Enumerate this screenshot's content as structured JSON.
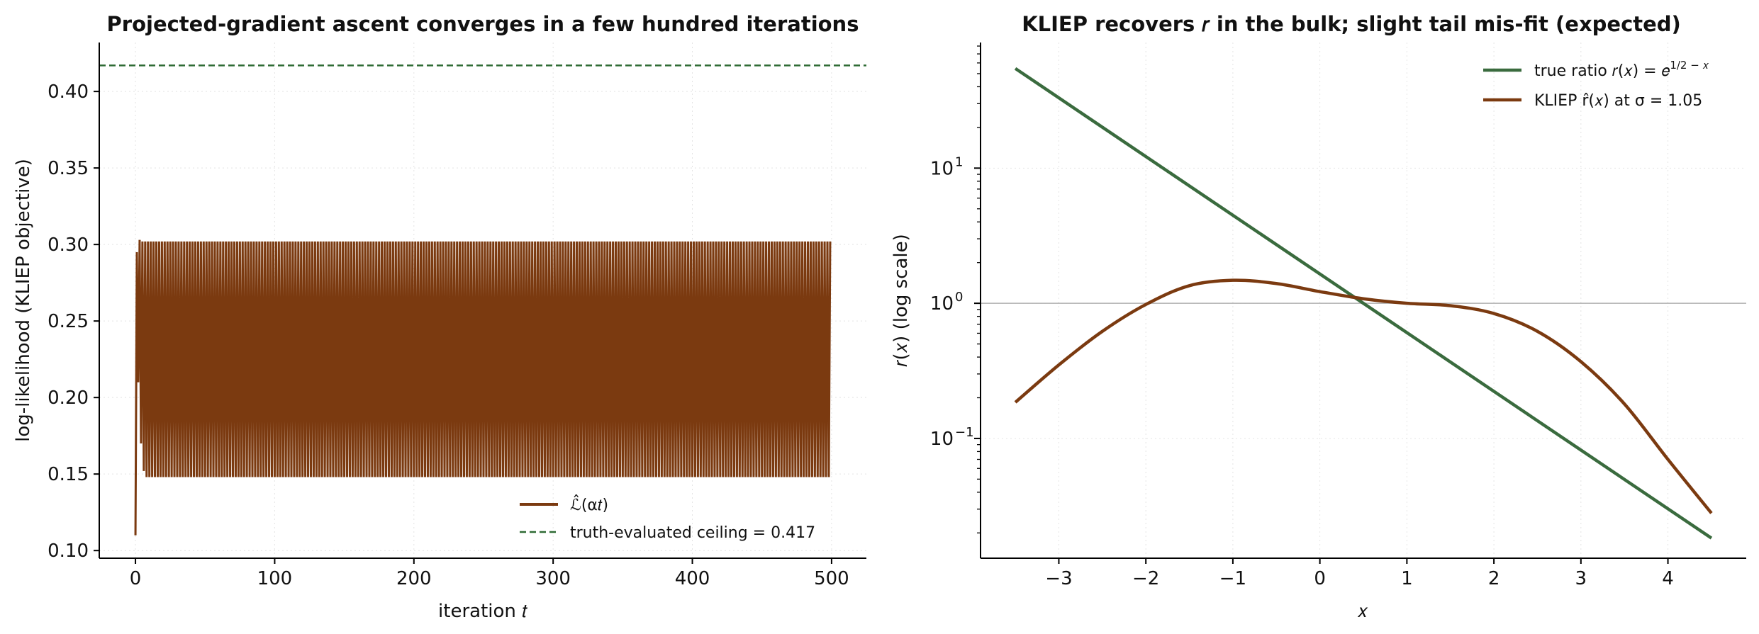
{
  "chart_data": [
    {
      "type": "line",
      "title": "Projected-gradient ascent converges in a few hundred iterations",
      "xlabel": "iteration 𝑡",
      "ylabel": "log-likelihood (KLIEP objective)",
      "xlim": [
        -26,
        525
      ],
      "ylim": [
        0.095,
        0.432
      ],
      "xticks": [
        0,
        100,
        200,
        300,
        400,
        500
      ],
      "xtick_labels": [
        "0",
        "100",
        "200",
        "300",
        "400",
        "500"
      ],
      "yticks": [
        0.1,
        0.15,
        0.2,
        0.25,
        0.3,
        0.35,
        0.4
      ],
      "ytick_labels": [
        "0.10",
        "0.15",
        "0.20",
        "0.25",
        "0.30",
        "0.35",
        "0.40"
      ],
      "grid": true,
      "legend_position": "bottom-right",
      "series": [
        {
          "name": "ℒ̂(α𝑡)",
          "color": "#7b3a10",
          "style": "solid",
          "description_values": {
            "initial": [
              [
                0,
                0.11
              ],
              [
                1,
                0.295
              ],
              [
                2,
                0.21
              ],
              [
                3,
                0.303
              ],
              [
                4,
                0.17
              ],
              [
                5,
                0.302
              ],
              [
                6,
                0.152
              ]
            ],
            "oscillation_range": [
              0.148,
              0.302
            ],
            "oscillation_until": 499
          }
        },
        {
          "name": "truth-evaluated ceiling = 0.417",
          "color": "#2f6b34",
          "style": "dashed",
          "y": 0.417
        }
      ]
    },
    {
      "type": "line",
      "title": "KLIEP recovers 𝑟 in the bulk; slight tail mis-fit (expected)",
      "xlabel": "𝑥",
      "ylabel": "𝑟(𝑥) (log scale)",
      "xlim": [
        -3.9,
        4.9
      ],
      "ylim": [
        0.013,
        85
      ],
      "yscale": "log",
      "xticks": [
        -3,
        -2,
        -1,
        0,
        1,
        2,
        3,
        4
      ],
      "xtick_labels": [
        "−3",
        "−2",
        "−1",
        "0",
        "1",
        "2",
        "3",
        "4"
      ],
      "yticks": [
        0.1,
        1,
        10
      ],
      "ytick_labels": [
        "10",
        "10",
        "10"
      ],
      "ytick_exponents": [
        "−1",
        "0",
        "1"
      ],
      "reference_line": {
        "y": 1,
        "color": "#b0b0b0"
      },
      "grid": true,
      "legend_position": "top-right",
      "series": [
        {
          "name": "true ratio 𝑟(𝑥) = 𝑒^(1/2 − 𝑥)",
          "legend_main": "true ratio 𝑟(𝑥) = 𝑒",
          "legend_sup": "1/2 − 𝑥",
          "color": "#3a6b3e",
          "x": [
            -3.5,
            4.5
          ],
          "y": [
            54.6,
            0.0183
          ]
        },
        {
          "name": "KLIEP r̂(𝑥) at σ = 1.05",
          "color": "#7b3a10",
          "x": [
            -3.5,
            -3.0,
            -2.5,
            -2.0,
            -1.5,
            -1.0,
            -0.5,
            0.0,
            0.5,
            1.0,
            1.5,
            2.0,
            2.5,
            3.0,
            3.5,
            4.0,
            4.5
          ],
          "y": [
            0.185,
            0.35,
            0.62,
            0.98,
            1.35,
            1.48,
            1.4,
            1.22,
            1.08,
            1.0,
            0.96,
            0.84,
            0.62,
            0.37,
            0.18,
            0.07,
            0.028
          ]
        }
      ]
    }
  ]
}
